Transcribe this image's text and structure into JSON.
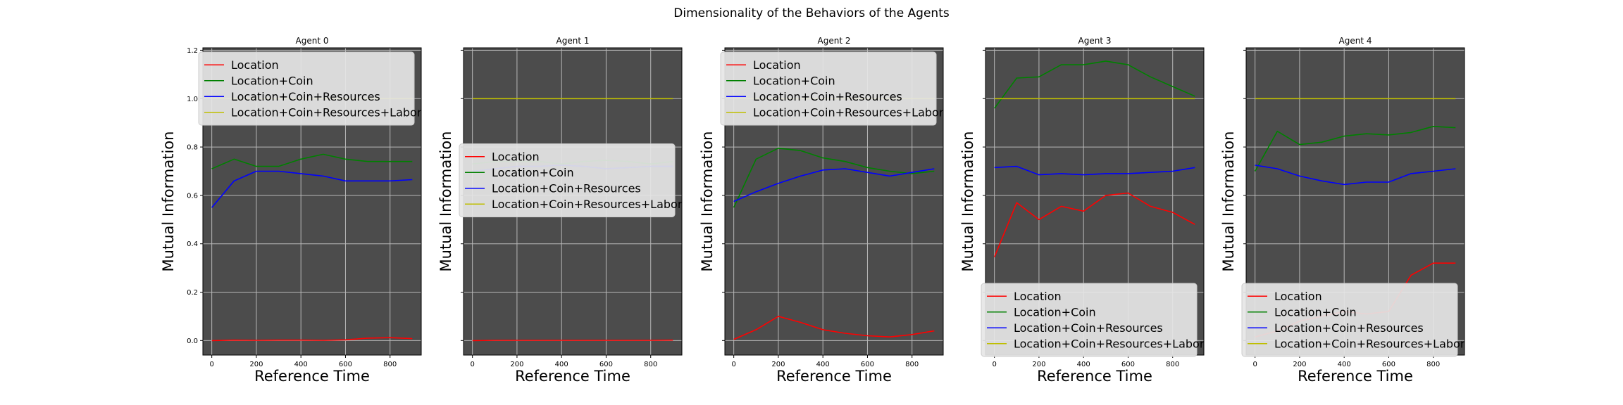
{
  "figure": {
    "title": "Dimensionality of the Behaviors of the Agents"
  },
  "colors": {
    "plot_background": "#4c4c4c",
    "grid": "#b8b8b8",
    "legend_background": "#e6e6e6",
    "Location": "#ff0000",
    "Location+Coin": "#008000",
    "Location+Coin+Resources": "#0000ff",
    "Location+Coin+Resources+Labor": "#bfbf00"
  },
  "chart_data": [
    {
      "type": "line",
      "title": "Agent 0",
      "xlabel": "Reference Time",
      "ylabel": "Mutual Information",
      "xlim": [
        -40,
        940
      ],
      "ylim": [
        -0.06,
        1.21
      ],
      "xticks": [
        0,
        200,
        400,
        600,
        800
      ],
      "yticks": [
        0.0,
        0.2,
        0.4,
        0.6,
        0.8,
        1.0,
        1.2
      ],
      "ytick_labels": [
        "0.0",
        "0.2",
        "0.4",
        "0.6",
        "0.8",
        "1.0",
        "1.2"
      ],
      "show_yticklabels": true,
      "grid": true,
      "legend_position": "upper-left",
      "x": [
        0,
        100,
        200,
        300,
        400,
        500,
        600,
        700,
        800,
        900
      ],
      "series": [
        {
          "name": "Location",
          "color": "#ff0000",
          "values": [
            0.0,
            0.002,
            0.001,
            0.002,
            0.002,
            0.001,
            0.003,
            0.01,
            0.012,
            0.008
          ]
        },
        {
          "name": "Location+Coin",
          "color": "#008000",
          "values": [
            0.71,
            0.75,
            0.72,
            0.72,
            0.75,
            0.77,
            0.75,
            0.74,
            0.74,
            0.74
          ]
        },
        {
          "name": "Location+Coin+Resources",
          "color": "#0000ff",
          "values": [
            0.55,
            0.66,
            0.7,
            0.7,
            0.69,
            0.68,
            0.66,
            0.66,
            0.66,
            0.665
          ]
        },
        {
          "name": "Location+Coin+Resources+Labor",
          "color": "#bfbf00",
          "values": [
            1.0,
            1.0,
            1.0,
            1.0,
            1.0,
            1.0,
            1.0,
            1.0,
            1.0,
            1.0
          ]
        }
      ]
    },
    {
      "type": "line",
      "title": "Agent 1",
      "xlabel": "Reference Time",
      "ylabel": "Mutual Information",
      "xlim": [
        -40,
        940
      ],
      "ylim": [
        -0.06,
        1.21
      ],
      "xticks": [
        0,
        200,
        400,
        600,
        800
      ],
      "yticks": [
        0.0,
        0.2,
        0.4,
        0.6,
        0.8,
        1.0,
        1.2
      ],
      "ytick_labels": [
        "0.0",
        "0.2",
        "0.4",
        "0.6",
        "0.8",
        "1.0",
        "1.2"
      ],
      "show_yticklabels": false,
      "grid": true,
      "legend_position": "center-left",
      "x": [
        0,
        100,
        200,
        300,
        400,
        500,
        600,
        700,
        800,
        900
      ],
      "series": [
        {
          "name": "Location",
          "color": "#ff0000",
          "values": [
            0.0,
            0.001,
            0.001,
            0.001,
            0.001,
            0.001,
            0.001,
            0.001,
            0.001,
            0.002
          ]
        },
        {
          "name": "Location+Coin",
          "color": "#008000",
          "values": [
            0.73,
            0.74,
            0.74,
            0.74,
            0.73,
            0.74,
            0.745,
            0.74,
            0.73,
            0.74
          ]
        },
        {
          "name": "Location+Coin+Resources",
          "color": "#0000ff",
          "values": [
            0.7,
            0.71,
            0.72,
            0.72,
            0.725,
            0.72,
            0.71,
            0.715,
            0.72,
            0.72
          ]
        },
        {
          "name": "Location+Coin+Resources+Labor",
          "color": "#bfbf00",
          "values": [
            1.0,
            1.0,
            1.0,
            1.0,
            1.0,
            1.0,
            1.0,
            1.0,
            1.0,
            1.0
          ]
        }
      ]
    },
    {
      "type": "line",
      "title": "Agent 2",
      "xlabel": "Reference Time",
      "ylabel": "Mutual Information",
      "xlim": [
        -40,
        940
      ],
      "ylim": [
        -0.06,
        1.21
      ],
      "xticks": [
        0,
        200,
        400,
        600,
        800
      ],
      "yticks": [
        0.0,
        0.2,
        0.4,
        0.6,
        0.8,
        1.0,
        1.2
      ],
      "ytick_labels": [
        "0.0",
        "0.2",
        "0.4",
        "0.6",
        "0.8",
        "1.0",
        "1.2"
      ],
      "show_yticklabels": false,
      "grid": true,
      "legend_position": "upper-left",
      "x": [
        0,
        100,
        200,
        300,
        400,
        500,
        600,
        700,
        800,
        900
      ],
      "series": [
        {
          "name": "Location",
          "color": "#ff0000",
          "values": [
            0.005,
            0.045,
            0.1,
            0.075,
            0.045,
            0.03,
            0.02,
            0.015,
            0.025,
            0.04
          ]
        },
        {
          "name": "Location+Coin",
          "color": "#008000",
          "values": [
            0.55,
            0.75,
            0.795,
            0.785,
            0.755,
            0.74,
            0.715,
            0.7,
            0.69,
            0.7
          ]
        },
        {
          "name": "Location+Coin+Resources",
          "color": "#0000ff",
          "values": [
            0.575,
            0.615,
            0.65,
            0.68,
            0.705,
            0.71,
            0.695,
            0.68,
            0.695,
            0.71
          ]
        },
        {
          "name": "Location+Coin+Resources+Labor",
          "color": "#bfbf00",
          "values": [
            1.0,
            1.0,
            1.0,
            1.0,
            1.0,
            1.0,
            1.0,
            1.0,
            1.0,
            1.0
          ]
        }
      ]
    },
    {
      "type": "line",
      "title": "Agent 3",
      "xlabel": "Reference Time",
      "ylabel": "Mutual Information",
      "xlim": [
        -40,
        940
      ],
      "ylim": [
        -0.06,
        1.21
      ],
      "xticks": [
        0,
        200,
        400,
        600,
        800
      ],
      "yticks": [
        0.0,
        0.2,
        0.4,
        0.6,
        0.8,
        1.0,
        1.2
      ],
      "ytick_labels": [
        "0.0",
        "0.2",
        "0.4",
        "0.6",
        "0.8",
        "1.0",
        "1.2"
      ],
      "show_yticklabels": false,
      "grid": true,
      "legend_position": "lower-left",
      "x": [
        0,
        100,
        200,
        300,
        400,
        500,
        600,
        700,
        800,
        900
      ],
      "series": [
        {
          "name": "Location",
          "color": "#ff0000",
          "values": [
            0.345,
            0.57,
            0.5,
            0.555,
            0.535,
            0.6,
            0.61,
            0.555,
            0.53,
            0.48
          ]
        },
        {
          "name": "Location+Coin",
          "color": "#008000",
          "values": [
            0.96,
            1.085,
            1.09,
            1.14,
            1.14,
            1.155,
            1.14,
            1.09,
            1.05,
            1.01
          ]
        },
        {
          "name": "Location+Coin+Resources",
          "color": "#0000ff",
          "values": [
            0.715,
            0.72,
            0.685,
            0.69,
            0.685,
            0.69,
            0.69,
            0.695,
            0.7,
            0.715
          ]
        },
        {
          "name": "Location+Coin+Resources+Labor",
          "color": "#bfbf00",
          "values": [
            1.0,
            1.0,
            1.0,
            1.0,
            1.0,
            1.0,
            1.0,
            1.0,
            1.0,
            1.0
          ]
        }
      ]
    },
    {
      "type": "line",
      "title": "Agent 4",
      "xlabel": "Reference Time",
      "ylabel": "Mutual Information",
      "xlim": [
        -40,
        940
      ],
      "ylim": [
        -0.06,
        1.21
      ],
      "xticks": [
        0,
        200,
        400,
        600,
        800
      ],
      "yticks": [
        0.0,
        0.2,
        0.4,
        0.6,
        0.8,
        1.0,
        1.2
      ],
      "ytick_labels": [
        "0.0",
        "0.2",
        "0.4",
        "0.6",
        "0.8",
        "1.0",
        "1.2"
      ],
      "show_yticklabels": false,
      "grid": true,
      "legend_position": "lower-left",
      "x": [
        0,
        100,
        200,
        300,
        400,
        500,
        600,
        700,
        800,
        900
      ],
      "series": [
        {
          "name": "Location",
          "color": "#ff0000",
          "values": [
            0.015,
            0.04,
            0.08,
            0.1,
            0.12,
            0.11,
            0.12,
            0.27,
            0.32,
            0.32
          ]
        },
        {
          "name": "Location+Coin",
          "color": "#008000",
          "values": [
            0.7,
            0.865,
            0.81,
            0.82,
            0.845,
            0.855,
            0.85,
            0.86,
            0.885,
            0.88
          ]
        },
        {
          "name": "Location+Coin+Resources",
          "color": "#0000ff",
          "values": [
            0.725,
            0.71,
            0.68,
            0.66,
            0.645,
            0.655,
            0.655,
            0.69,
            0.7,
            0.71
          ]
        },
        {
          "name": "Location+Coin+Resources+Labor",
          "color": "#bfbf00",
          "values": [
            1.0,
            1.0,
            1.0,
            1.0,
            1.0,
            1.0,
            1.0,
            1.0,
            1.0,
            1.0
          ]
        }
      ]
    }
  ]
}
